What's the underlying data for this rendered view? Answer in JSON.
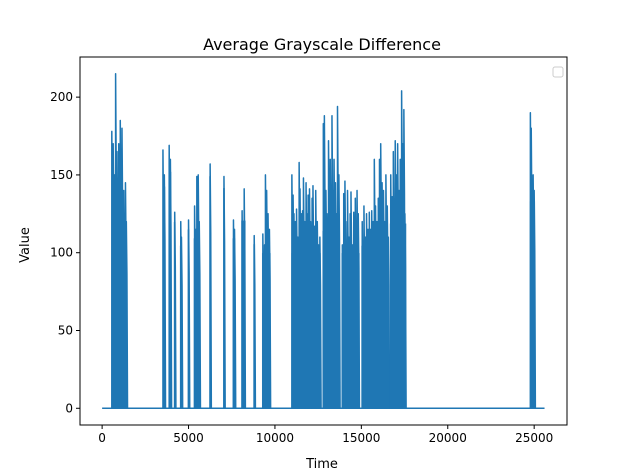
{
  "chart_data": {
    "type": "line",
    "title": "Average Grayscale Difference",
    "xlabel": "Time",
    "ylabel": "Value",
    "xlim": [
      -1280,
      26900
    ],
    "ylim": [
      -10.75,
      225.8
    ],
    "xticks": [
      0,
      5000,
      10000,
      15000,
      20000,
      25000
    ],
    "yticks": [
      0,
      50,
      100,
      150,
      200
    ],
    "xtick_labels": [
      "0",
      "5000",
      "10000",
      "15000",
      "20000",
      "25000"
    ],
    "ytick_labels": [
      "0",
      "50",
      "100",
      "150",
      "200"
    ],
    "legend": {
      "placement": "top-right",
      "entries": []
    },
    "grid": false,
    "series": [
      {
        "color": "#1f77b4",
        "baseline": 0,
        "x_start": 0,
        "x_end": 25600,
        "bursts": [
          {
            "x": [
              560,
              1440
            ],
            "peaks": [
              [
                560,
                178
              ],
              [
                600,
                130
              ],
              [
                640,
                170
              ],
              [
                680,
                115
              ],
              [
                720,
                150
              ],
              [
                780,
                215
              ],
              [
                820,
                100
              ],
              [
                860,
                165
              ],
              [
                900,
                120
              ],
              [
                960,
                170
              ],
              [
                1000,
                110
              ],
              [
                1050,
                185
              ],
              [
                1100,
                130
              ],
              [
                1150,
                180
              ],
              [
                1200,
                110
              ],
              [
                1250,
                140
              ],
              [
                1300,
                115
              ],
              [
                1350,
                145
              ],
              [
                1400,
                120
              ]
            ]
          },
          {
            "x": [
              3500,
              3650
            ],
            "peaks": [
              [
                3520,
                166
              ],
              [
                3600,
                150
              ]
            ]
          },
          {
            "x": [
              3850,
              4000
            ],
            "peaks": [
              [
                3880,
                169
              ],
              [
                3950,
                160
              ]
            ]
          },
          {
            "x": [
              4150,
              4250
            ],
            "peaks": [
              [
                4200,
                126
              ]
            ]
          },
          {
            "x": [
              4500,
              4620
            ],
            "peaks": [
              [
                4550,
                120
              ],
              [
                4590,
                110
              ]
            ]
          },
          {
            "x": [
              4950,
              5050
            ],
            "peaks": [
              [
                5000,
                121
              ]
            ]
          },
          {
            "x": [
              5300,
              5650
            ],
            "peaks": [
              [
                5350,
                130
              ],
              [
                5420,
                115
              ],
              [
                5480,
                149
              ],
              [
                5560,
                150
              ],
              [
                5620,
                120
              ]
            ]
          },
          {
            "x": [
              6200,
              6300
            ],
            "peaks": [
              [
                6250,
                157
              ]
            ]
          },
          {
            "x": [
              7000,
              7100
            ],
            "peaks": [
              [
                7050,
                149
              ]
            ]
          },
          {
            "x": [
              7550,
              7700
            ],
            "peaks": [
              [
                7600,
                121
              ],
              [
                7660,
                115
              ]
            ]
          },
          {
            "x": [
              8050,
              8300
            ],
            "peaks": [
              [
                8100,
                127
              ],
              [
                8220,
                141
              ]
            ]
          },
          {
            "x": [
              8750,
              8850
            ],
            "peaks": [
              [
                8800,
                111
              ]
            ]
          },
          {
            "x": [
              9250,
              9750
            ],
            "peaks": [
              [
                9300,
                112
              ],
              [
                9400,
                105
              ],
              [
                9450,
                150
              ],
              [
                9520,
                140
              ],
              [
                9600,
                125
              ],
              [
                9680,
                115
              ]
            ]
          },
          {
            "x": [
              10950,
              12650
            ],
            "peaks": [
              [
                10980,
                150
              ],
              [
                11050,
                137
              ],
              [
                11100,
                125
              ],
              [
                11180,
                120
              ],
              [
                11250,
                128
              ],
              [
                11320,
                110
              ],
              [
                11400,
                158
              ],
              [
                11450,
                141
              ],
              [
                11520,
                125
              ],
              [
                11600,
                127
              ],
              [
                11650,
                148
              ],
              [
                11720,
                120
              ],
              [
                11800,
                145
              ],
              [
                11860,
                125
              ],
              [
                11920,
                137
              ],
              [
                12000,
                141
              ],
              [
                12060,
                120
              ],
              [
                12150,
                135
              ],
              [
                12200,
                143
              ],
              [
                12280,
                117
              ],
              [
                12360,
                140
              ],
              [
                12450,
                120
              ],
              [
                12520,
                105
              ],
              [
                12600,
                110
              ]
            ]
          },
          {
            "x": [
              12750,
              13750
            ],
            "peaks": [
              [
                12800,
                183
              ],
              [
                12860,
                188
              ],
              [
                12950,
                140
              ],
              [
                13010,
                125
              ],
              [
                13100,
                172
              ],
              [
                13150,
                120
              ],
              [
                13200,
                160
              ],
              [
                13300,
                188
              ],
              [
                13360,
                140
              ],
              [
                13420,
                160
              ],
              [
                13500,
                145
              ],
              [
                13560,
                125
              ],
              [
                13620,
                194
              ],
              [
                13700,
                150
              ]
            ]
          },
          {
            "x": [
              13850,
              14900
            ],
            "peaks": [
              [
                13900,
                105
              ],
              [
                13980,
                138
              ],
              [
                14050,
                146
              ],
              [
                14100,
                120
              ],
              [
                14200,
                140
              ],
              [
                14280,
                110
              ],
              [
                14350,
                125
              ],
              [
                14400,
                139
              ],
              [
                14500,
                105
              ],
              [
                14560,
                126
              ],
              [
                14650,
                135
              ],
              [
                14750,
                140
              ],
              [
                14820,
                125
              ]
            ]
          },
          {
            "x": [
              15000,
              16600
            ],
            "peaks": [
              [
                15050,
                120
              ],
              [
                15150,
                130
              ],
              [
                15220,
                110
              ],
              [
                15300,
                125
              ],
              [
                15380,
                115
              ],
              [
                15460,
                126
              ],
              [
                15520,
                115
              ],
              [
                15600,
                127
              ],
              [
                15680,
                120
              ],
              [
                15750,
                160
              ],
              [
                15820,
                130
              ],
              [
                15900,
                120
              ],
              [
                15980,
                135
              ],
              [
                16050,
                160
              ],
              [
                16120,
                170
              ],
              [
                16200,
                145
              ],
              [
                16280,
                140
              ],
              [
                16350,
                120
              ],
              [
                16420,
                150
              ],
              [
                16500,
                130
              ],
              [
                16560,
                110
              ]
            ]
          },
          {
            "x": [
              16650,
              17600
            ],
            "peaks": [
              [
                16700,
                150
              ],
              [
                16780,
                136
              ],
              [
                16850,
                165
              ],
              [
                16900,
                130
              ],
              [
                16960,
                172
              ],
              [
                17020,
                150
              ],
              [
                17100,
                170
              ],
              [
                17180,
                140
              ],
              [
                17250,
                160
              ],
              [
                17330,
                204
              ],
              [
                17400,
                170
              ],
              [
                17460,
                192
              ],
              [
                17520,
                125
              ]
            ]
          },
          {
            "x": [
              24750,
              25050
            ],
            "peaks": [
              [
                24780,
                190
              ],
              [
                24830,
                180
              ],
              [
                24880,
                145
              ],
              [
                24940,
                150
              ],
              [
                25000,
                140
              ]
            ]
          }
        ]
      }
    ]
  }
}
